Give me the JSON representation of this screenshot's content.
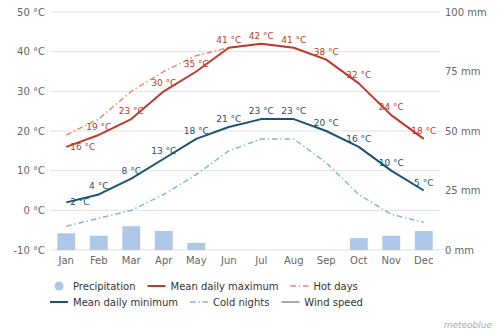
{
  "chart_data": {
    "type": "bar",
    "categories": [
      "Jan",
      "Feb",
      "Mar",
      "Apr",
      "May",
      "Jun",
      "Jul",
      "Aug",
      "Sep",
      "Oct",
      "Nov",
      "Dec"
    ],
    "ylim": [
      -10,
      50
    ],
    "yticks": [
      {
        "value": -10,
        "label": "-10 °C"
      },
      {
        "value": 0,
        "label": "0 °C"
      },
      {
        "value": 10,
        "label": "10 °C"
      },
      {
        "value": 20,
        "label": "20 °C"
      },
      {
        "value": 30,
        "label": "30 °C"
      },
      {
        "value": 40,
        "label": "40 °C"
      },
      {
        "value": 50,
        "label": "50 °C"
      }
    ],
    "y2lim": [
      0,
      100
    ],
    "y2ticks": [
      {
        "value": 0,
        "label": "0 mm"
      },
      {
        "value": 25,
        "label": "25 mm"
      },
      {
        "value": 50,
        "label": "50 mm"
      },
      {
        "value": 75,
        "label": "75 mm"
      },
      {
        "value": 100,
        "label": "100 mm"
      }
    ],
    "grid": true,
    "legend": "bottom",
    "annotations": [
      "meteoblue"
    ],
    "series": [
      {
        "name": "Precipitation",
        "type": "bar",
        "axis": "y2",
        "color": "#aec6e8",
        "values": [
          7,
          6,
          10,
          8,
          3,
          0,
          0,
          0,
          0,
          5,
          6,
          8
        ]
      },
      {
        "name": "Mean daily maximum",
        "type": "line",
        "color": "#c0392b",
        "line_style": "solid",
        "values": [
          16,
          19,
          23,
          30,
          35,
          41,
          42,
          41,
          38,
          32,
          24,
          18
        ],
        "data_labels": true,
        "value_labels": [
          "16 °C",
          "19 °C",
          "23 °C",
          "30 °C",
          "35 °C",
          "41 °C",
          "42 °C",
          "41 °C",
          "38 °C",
          "32 °C",
          "24 °C",
          "18 °C"
        ]
      },
      {
        "name": "Hot days",
        "type": "line",
        "color": "#e8836a",
        "line_style": "dashdot",
        "values": [
          19,
          23,
          30,
          35,
          39,
          41,
          42,
          41,
          38,
          32,
          24,
          18
        ]
      },
      {
        "name": "Mean daily minimum",
        "type": "line",
        "color": "#1a5276",
        "line_style": "solid",
        "values": [
          2,
          4,
          8,
          13,
          18,
          21,
          23,
          23,
          20,
          16,
          10,
          5
        ],
        "data_labels": true,
        "value_labels": [
          "2 °C",
          "4 °C",
          "8 °C",
          "13 °C",
          "18 °C",
          "21 °C",
          "23 °C",
          "23 °C",
          "20 °C",
          "16 °C",
          "10 °C",
          "5 °C"
        ]
      },
      {
        "name": "Cold nights",
        "type": "line",
        "color": "#7fb3d3",
        "line_style": "dashdot",
        "values": [
          -4,
          -2,
          0,
          4,
          9,
          15,
          18,
          18,
          12,
          4,
          -1,
          -3
        ]
      },
      {
        "name": "Wind speed",
        "type": "line",
        "color": "#aaaaaa",
        "line_style": "solid",
        "values": [
          null,
          null,
          null,
          null,
          null,
          null,
          null,
          null,
          null,
          null,
          null,
          null
        ]
      }
    ]
  }
}
